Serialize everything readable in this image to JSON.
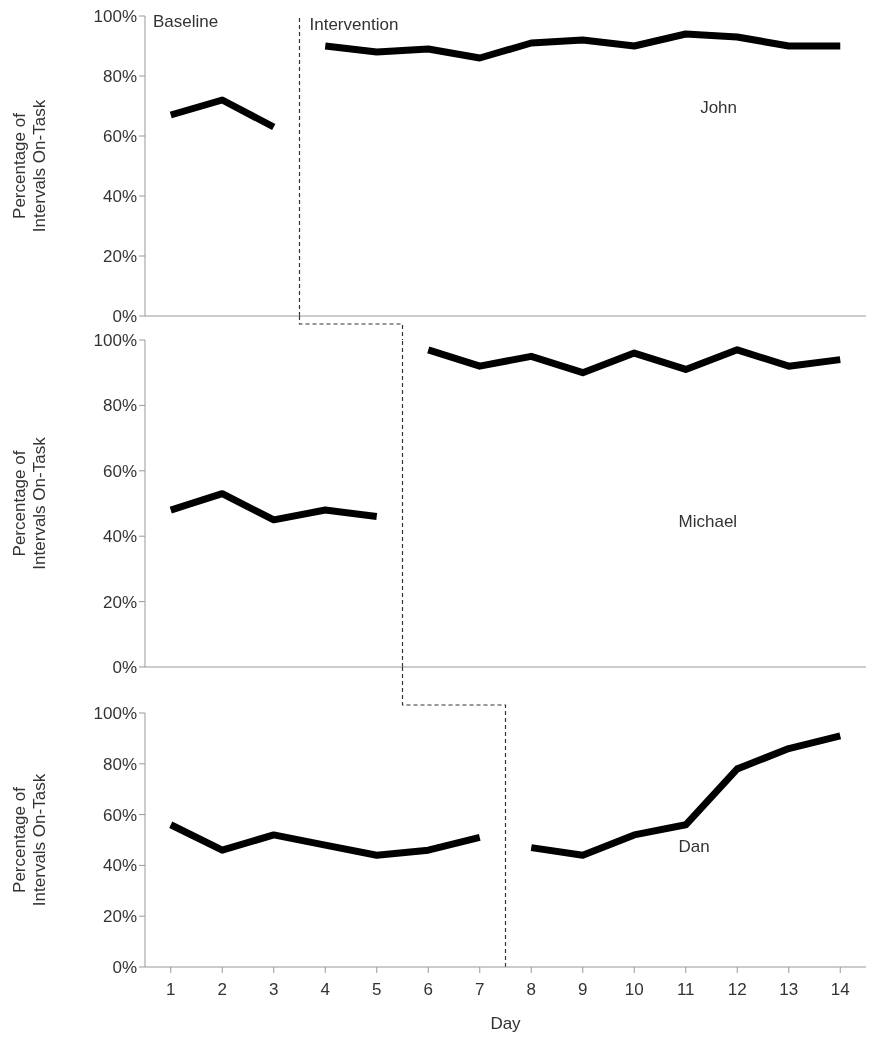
{
  "chart_data": [
    {
      "type": "line",
      "title": "John",
      "ylabel": "Percentage of Intervals On-Task",
      "annotations": [
        "Baseline"
      ],
      "xlim": [
        0.5,
        14.5
      ],
      "ylim": [
        0,
        100
      ],
      "yticks": [
        {
          "value": 0,
          "label": "0%"
        },
        {
          "value": 20,
          "label": "20%"
        },
        {
          "value": 40,
          "label": "40%"
        },
        {
          "value": 60,
          "label": "60%"
        },
        {
          "value": 80,
          "label": "80%"
        },
        {
          "value": 100,
          "label": "100%"
        }
      ],
      "tick_labels": "y",
      "marker": "none",
      "line_style": "solid",
      "series": [
        {
          "color": "#000000",
          "x": [
            1,
            2,
            3
          ],
          "values": [
            67,
            72,
            63
          ]
        },
        {
          "color": "#000000",
          "x": [
            4,
            5,
            6,
            7,
            8,
            9,
            10,
            11,
            12,
            13,
            14
          ],
          "values": [
            90,
            88,
            89,
            86,
            91,
            92,
            90,
            94,
            93,
            90,
            90
          ]
        }
      ],
      "ref_lines": [
        {
          "axis": "x",
          "value": 3.5,
          "label": "Intervention",
          "color": "#333333",
          "line_style": "dashed"
        }
      ]
    },
    {
      "type": "line",
      "title": "Michael",
      "ylabel": "Percentage of Intervals On-Task",
      "xlim": [
        0.5,
        14.5
      ],
      "ylim": [
        0,
        100
      ],
      "yticks": [
        {
          "value": 0,
          "label": "0%"
        },
        {
          "value": 20,
          "label": "20%"
        },
        {
          "value": 40,
          "label": "40%"
        },
        {
          "value": 60,
          "label": "60%"
        },
        {
          "value": 80,
          "label": "80%"
        },
        {
          "value": 100,
          "label": "100%"
        }
      ],
      "tick_labels": "y",
      "marker": "none",
      "line_style": "solid",
      "series": [
        {
          "color": "#000000",
          "x": [
            1,
            2,
            3,
            4,
            5
          ],
          "values": [
            48,
            53,
            45,
            48,
            46
          ]
        },
        {
          "color": "#000000",
          "x": [
            6,
            7,
            8,
            9,
            10,
            11,
            12,
            13,
            14
          ],
          "values": [
            97,
            92,
            95,
            90,
            96,
            91,
            97,
            92,
            94
          ]
        }
      ],
      "ref_lines": [
        {
          "axis": "x",
          "value": 5.5,
          "color": "#333333",
          "line_style": "dashed"
        }
      ]
    },
    {
      "type": "line",
      "title": "Dan",
      "xlabel": "Day",
      "ylabel": "Percentage of Intervals On-Task",
      "xlim": [
        0.5,
        14.5
      ],
      "xticks": [
        1,
        2,
        3,
        4,
        5,
        6,
        7,
        8,
        9,
        10,
        11,
        12,
        13,
        14
      ],
      "ylim": [
        0,
        100
      ],
      "yticks": [
        {
          "value": 0,
          "label": "0%"
        },
        {
          "value": 20,
          "label": "20%"
        },
        {
          "value": 40,
          "label": "40%"
        },
        {
          "value": 60,
          "label": "60%"
        },
        {
          "value": 80,
          "label": "80%"
        },
        {
          "value": 100,
          "label": "100%"
        }
      ],
      "marker": "none",
      "line_style": "solid",
      "series": [
        {
          "color": "#000000",
          "x": [
            1,
            2,
            3,
            4,
            5,
            6,
            7
          ],
          "values": [
            56,
            46,
            52,
            48,
            44,
            46,
            51
          ]
        },
        {
          "color": "#000000",
          "x": [
            8,
            9,
            10,
            11,
            12,
            13,
            14
          ],
          "values": [
            47,
            44,
            52,
            56,
            78,
            86,
            91
          ]
        }
      ],
      "ref_lines": [
        {
          "axis": "x",
          "value": 7.5,
          "color": "#333333",
          "line_style": "dashed"
        }
      ]
    }
  ]
}
